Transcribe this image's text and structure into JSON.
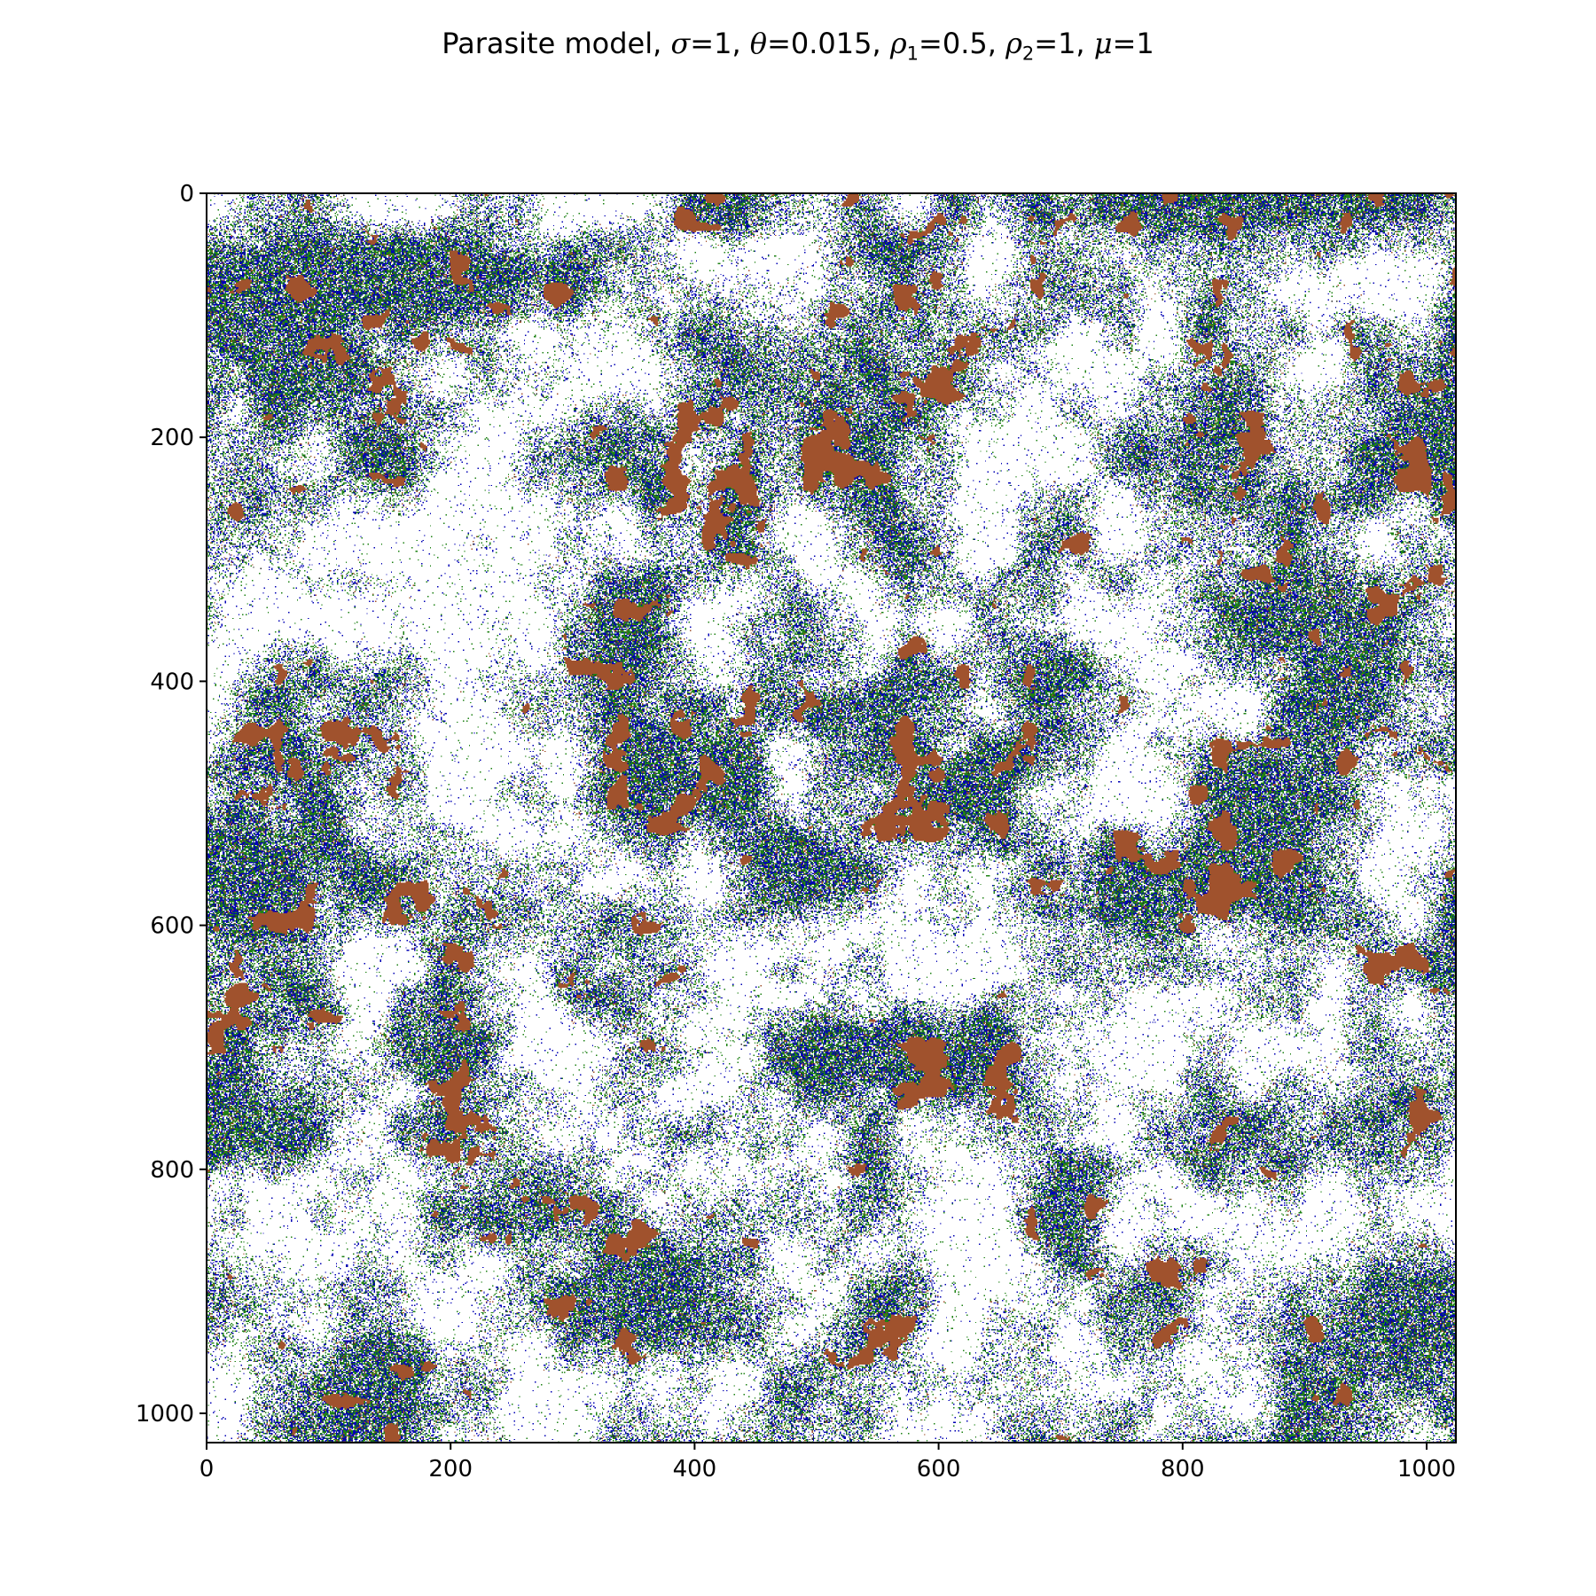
{
  "chart_data": {
    "type": "heatmap",
    "title": "Parasite model, σ=1, θ=0.015, ρ1=0.5, ρ2=1, μ=1",
    "title_parts": [
      {
        "t": "Parasite model, "
      },
      {
        "t": "σ",
        "style": "italic"
      },
      {
        "t": "=1, "
      },
      {
        "t": "θ",
        "style": "italic"
      },
      {
        "t": "=0.015, "
      },
      {
        "t": "ρ",
        "style": "italic"
      },
      {
        "t": "1",
        "style": "sub"
      },
      {
        "t": "=0.5, "
      },
      {
        "t": "ρ",
        "style": "italic"
      },
      {
        "t": "2",
        "style": "sub"
      },
      {
        "t": "=1, "
      },
      {
        "t": "μ",
        "style": "italic"
      },
      {
        "t": "=1"
      }
    ],
    "xlabel": "",
    "ylabel": "",
    "grid_size": 1024,
    "xlim": [
      0,
      1024
    ],
    "ylim": [
      1024,
      0
    ],
    "x_ticks": [
      0,
      200,
      400,
      600,
      800,
      1000
    ],
    "y_ticks": [
      0,
      200,
      400,
      600,
      800,
      1000
    ],
    "grid": false,
    "legend": "none",
    "colors": {
      "empty": "#ffffff",
      "blue": "#0000b4",
      "green": "#1e8214",
      "brown": "#a0522d",
      "dark": "#2a2a2a"
    },
    "approx_cell_fractions": {
      "empty": 0.62,
      "green": 0.16,
      "blue": 0.12,
      "brown": 0.09,
      "dark": 0.01
    }
  }
}
